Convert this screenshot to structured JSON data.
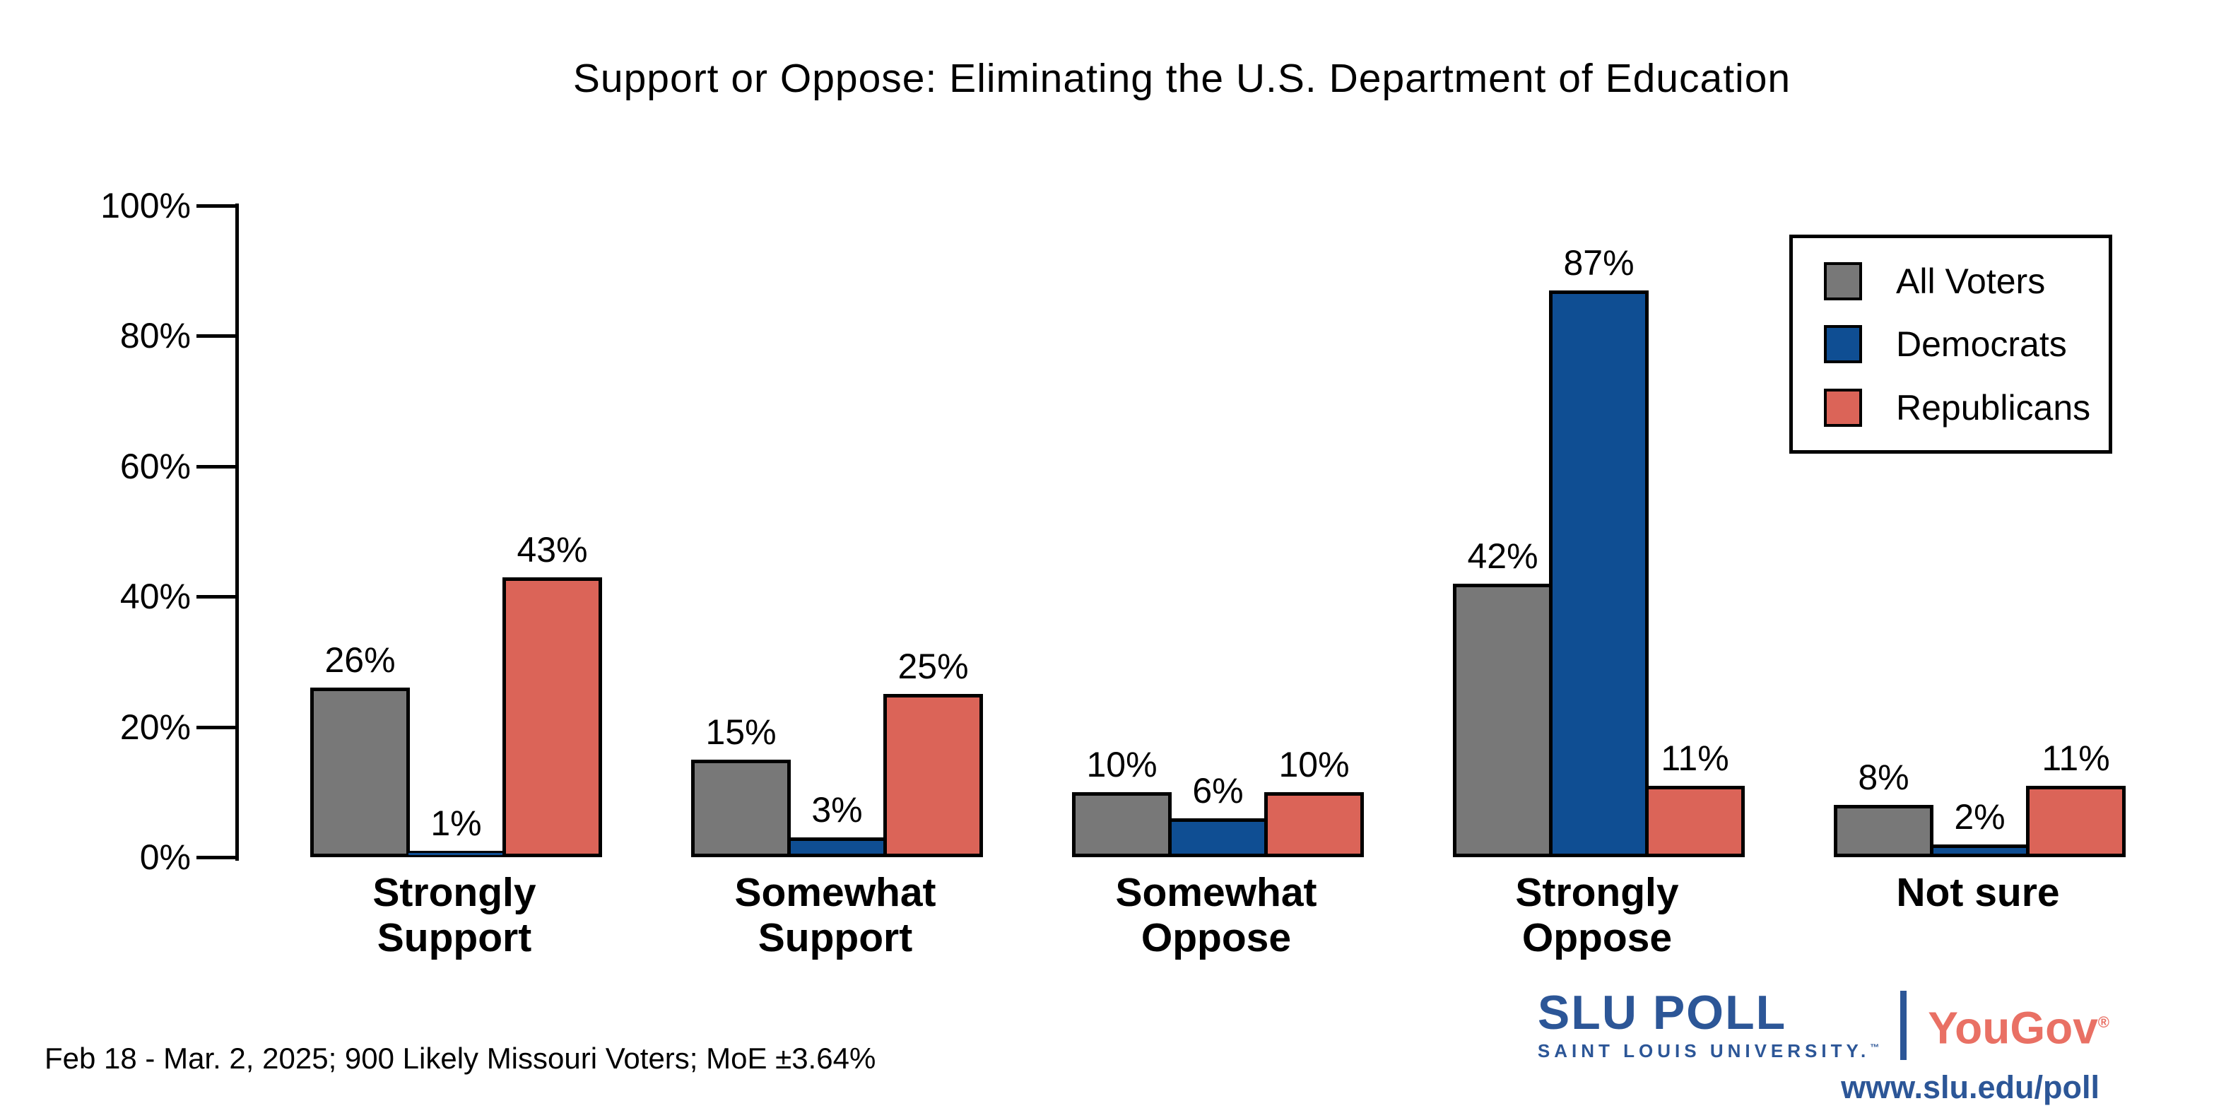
{
  "title": "Support or Oppose: Eliminating the U.S. Department of Education",
  "footnote": "Feb 18 - Mar. 2, 2025; 900 Likely Missouri Voters; MoE ±3.64%",
  "branding": {
    "slu_main": "SLU POLL",
    "slu_sub": "SAINT LOUIS UNIVERSITY.",
    "slu_tm": "™",
    "partner": "YouGov",
    "partner_reg": "®",
    "url": "www.slu.edu/poll",
    "slu_blue": "#2C5697",
    "partner_coral": "#E97064"
  },
  "chart_data": {
    "type": "bar",
    "title": "Support or Oppose: Eliminating the U.S. Department of Education",
    "categories": [
      "Strongly Support",
      "Somewhat Support",
      "Somewhat Oppose",
      "Strongly Oppose",
      "Not sure"
    ],
    "category_lines": [
      [
        "Strongly",
        "Support"
      ],
      [
        "Somewhat",
        "Support"
      ],
      [
        "Somewhat",
        "Oppose"
      ],
      [
        "Strongly",
        "Oppose"
      ],
      [
        "Not sure"
      ]
    ],
    "series": [
      {
        "name": "All Voters",
        "color": "#787878",
        "values": [
          26,
          15,
          10,
          42,
          8
        ]
      },
      {
        "name": "Democrats",
        "color": "#0F4E93",
        "values": [
          1,
          3,
          6,
          87,
          2
        ]
      },
      {
        "name": "Republicans",
        "color": "#DB6458",
        "values": [
          43,
          25,
          10,
          11,
          11
        ]
      }
    ],
    "value_labels": [
      [
        "26%",
        "15%",
        "10%",
        "42%",
        "8%"
      ],
      [
        "1%",
        "3%",
        "6%",
        "87%",
        "2%"
      ],
      [
        "43%",
        "25%",
        "10%",
        "11%",
        "11%"
      ]
    ],
    "xlabel": "",
    "ylabel": "",
    "ylim": [
      0,
      100
    ],
    "yticks": [
      0,
      20,
      40,
      60,
      80,
      100
    ],
    "ytick_labels": [
      "0%",
      "20%",
      "40%",
      "60%",
      "80%",
      "100%"
    ],
    "grid": false,
    "legend_position": "upper right",
    "bar_outline_color": "#000000"
  }
}
